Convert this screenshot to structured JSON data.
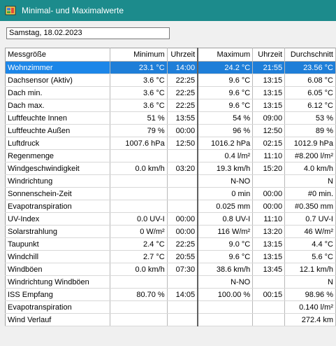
{
  "window": {
    "title": "Minimal- und Maximalwerte"
  },
  "date_field": {
    "value": "Samstag, 18.02.2023"
  },
  "table": {
    "columns": [
      "Messgröße",
      "Minimum",
      "Uhrzeit",
      "Maximum",
      "Uhrzeit",
      "Durchschnitt"
    ],
    "rows": [
      [
        "Wohnzimmer",
        "23.1 °C",
        "14:00",
        "24.2 °C",
        "21:55",
        "23.56 °C"
      ],
      [
        "Dachsensor (Aktiv)",
        "3.6 °C",
        "22:25",
        "9.6 °C",
        "13:15",
        "6.08 °C"
      ],
      [
        "Dach min.",
        "3.6 °C",
        "22:25",
        "9.6 °C",
        "13:15",
        "6.05 °C"
      ],
      [
        "Dach max.",
        "3.6 °C",
        "22:25",
        "9.6 °C",
        "13:15",
        "6.12 °C"
      ],
      [
        "Luftfeuchte Innen",
        "51 %",
        "13:55",
        "54 %",
        "09:00",
        "53 %"
      ],
      [
        "Luftfeuchte Außen",
        "79 %",
        "00:00",
        "96 %",
        "12:50",
        "89 %"
      ],
      [
        "Luftdruck",
        "1007.6 hPa",
        "12:50",
        "1016.2 hPa",
        "02:15",
        "1012.9 hPa"
      ],
      [
        "Regenmenge",
        "",
        "",
        "0.4 l/m²",
        "11:10",
        "#8.200 l/m²"
      ],
      [
        "Windgeschwindigkeit",
        "0.0 km/h",
        "03:20",
        "19.3 km/h",
        "15:20",
        "4.0 km/h"
      ],
      [
        "Windrichtung",
        "",
        "",
        "N-NO",
        "",
        "N"
      ],
      [
        "Sonnenschein-Zeit",
        "",
        "",
        "0 min",
        "00:00",
        "#0 min."
      ],
      [
        "Evapotranspiration",
        "",
        "",
        "0.025 mm",
        "00:00",
        "#0.350 mm"
      ],
      [
        "UV-Index",
        "0.0 UV-I",
        "00:00",
        "0.8 UV-I",
        "11:10",
        "0.7 UV-I"
      ],
      [
        "Solarstrahlung",
        "0 W/m²",
        "00:00",
        "116 W/m²",
        "13:20",
        "46 W/m²"
      ],
      [
        "Taupunkt",
        "2.4 °C",
        "22:25",
        "9.0 °C",
        "13:15",
        "4.4 °C"
      ],
      [
        "Windchill",
        "2.7 °C",
        "20:55",
        "9.6 °C",
        "13:15",
        "5.6 °C"
      ],
      [
        "Windböen",
        "0.0 km/h",
        "07:30",
        "38.6 km/h",
        "13:45",
        "12.1 km/h"
      ],
      [
        "Windrichtung Windböen",
        "",
        "",
        "N-NO",
        "",
        "N"
      ],
      [
        "ISS Empfang",
        "80.70 %",
        "14:05",
        "100.00 %",
        "00:15",
        "98.96 %"
      ],
      [
        "Evapotranspiration",
        "",
        "",
        "",
        "",
        "0.140 l/m²"
      ],
      [
        "Wind Verlauf",
        "",
        "",
        "",
        "",
        "272.4 km"
      ]
    ],
    "selected_row": 0
  },
  "colors": {
    "titlebar": "#1c8b8c",
    "selection": "#1e7ed8"
  },
  "icons": {
    "app": "weather-station-icon"
  }
}
